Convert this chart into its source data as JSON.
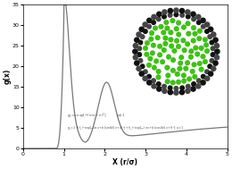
{
  "xlim": [
    0,
    5
  ],
  "ylim": [
    0,
    35
  ],
  "yticks": [
    0,
    5,
    10,
    15,
    20,
    25,
    30,
    35
  ],
  "xticks": [
    0,
    1,
    2,
    3,
    4,
    5
  ],
  "xlabel": "X (r/σ)",
  "ylabel": "g(x)",
  "line_color": "#777777",
  "inset_bg": "#eaeaf5",
  "dot_color": "#33cc00",
  "dot_edge": "#228800",
  "wall_dark": "#111111",
  "wall_mid": "#444444",
  "figsize": [
    2.6,
    1.89
  ],
  "dpi": 100
}
